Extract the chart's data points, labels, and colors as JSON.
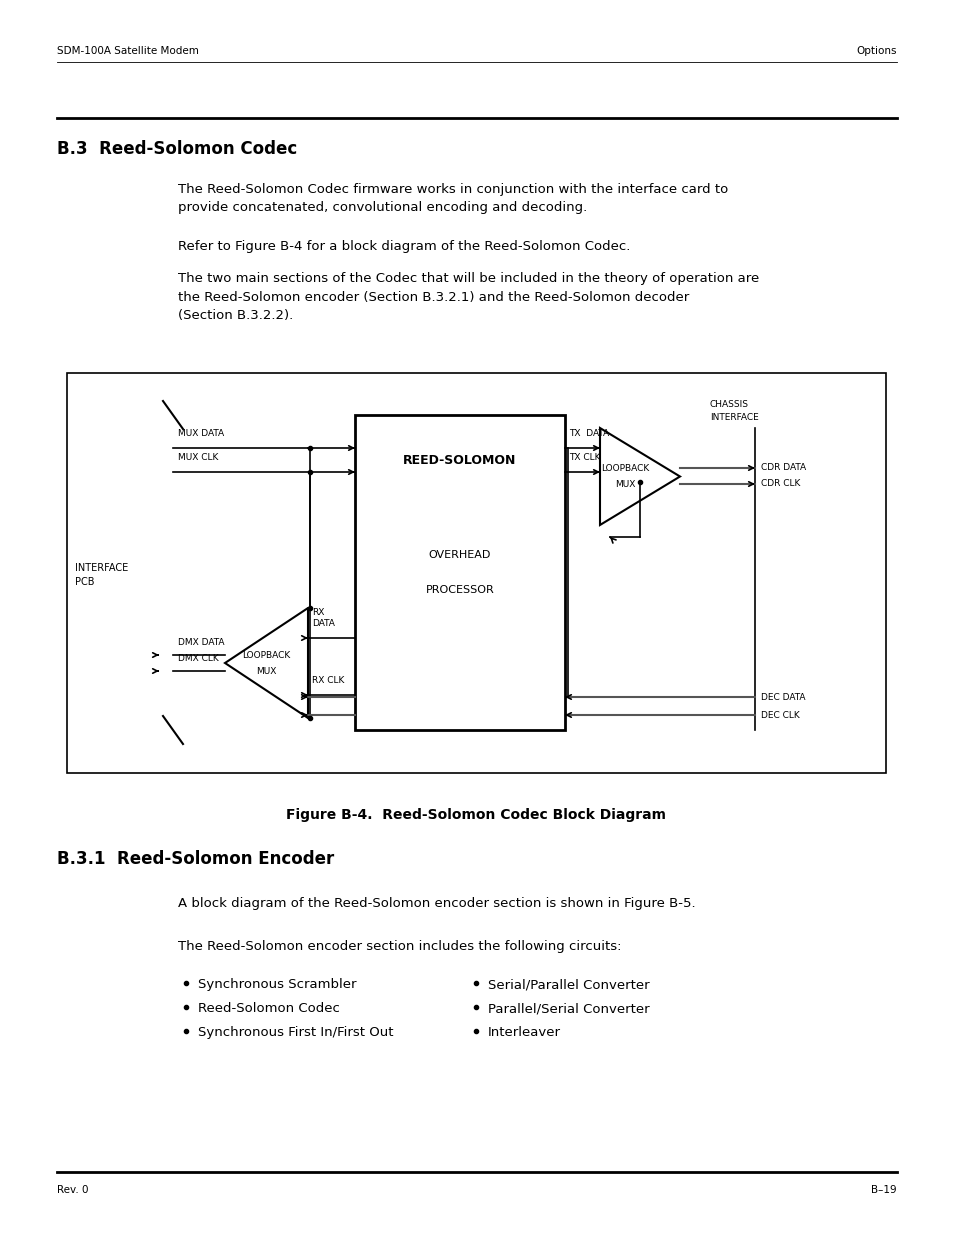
{
  "page_header_left": "SDM-100A Satellite Modem",
  "page_header_right": "Options",
  "section_title": "B.3  Reed-Solomon Codec",
  "para1": "The Reed-Solomon Codec firmware works in conjunction with the interface card to\nprovide concatenated, convolutional encoding and decoding.",
  "para2": "Refer to Figure B-4 for a block diagram of the Reed-Solomon Codec.",
  "para3": "The two main sections of the Codec that will be included in the theory of operation are\nthe Reed-Solomon encoder (Section B.3.2.1) and the Reed-Solomon decoder\n(Section B.3.2.2).",
  "figure_caption": "Figure B-4.  Reed-Solomon Codec Block Diagram",
  "section2_title": "B.3.1  Reed-Solomon Encoder",
  "para4": "A block diagram of the Reed-Solomon encoder section is shown in Figure B-5.",
  "para5": "The Reed-Solomon encoder section includes the following circuits:",
  "bullet_col1": [
    "Synchronous Scrambler",
    "Reed-Solomon Codec",
    "Synchronous First In/First Out"
  ],
  "bullet_col2": [
    "Serial/Parallel Converter",
    "Parallel/Serial Converter",
    "Interleaver"
  ],
  "page_footer_left": "Rev. 0",
  "page_footer_right": "B–19",
  "bg_color": "#ffffff",
  "text_color": "#000000"
}
